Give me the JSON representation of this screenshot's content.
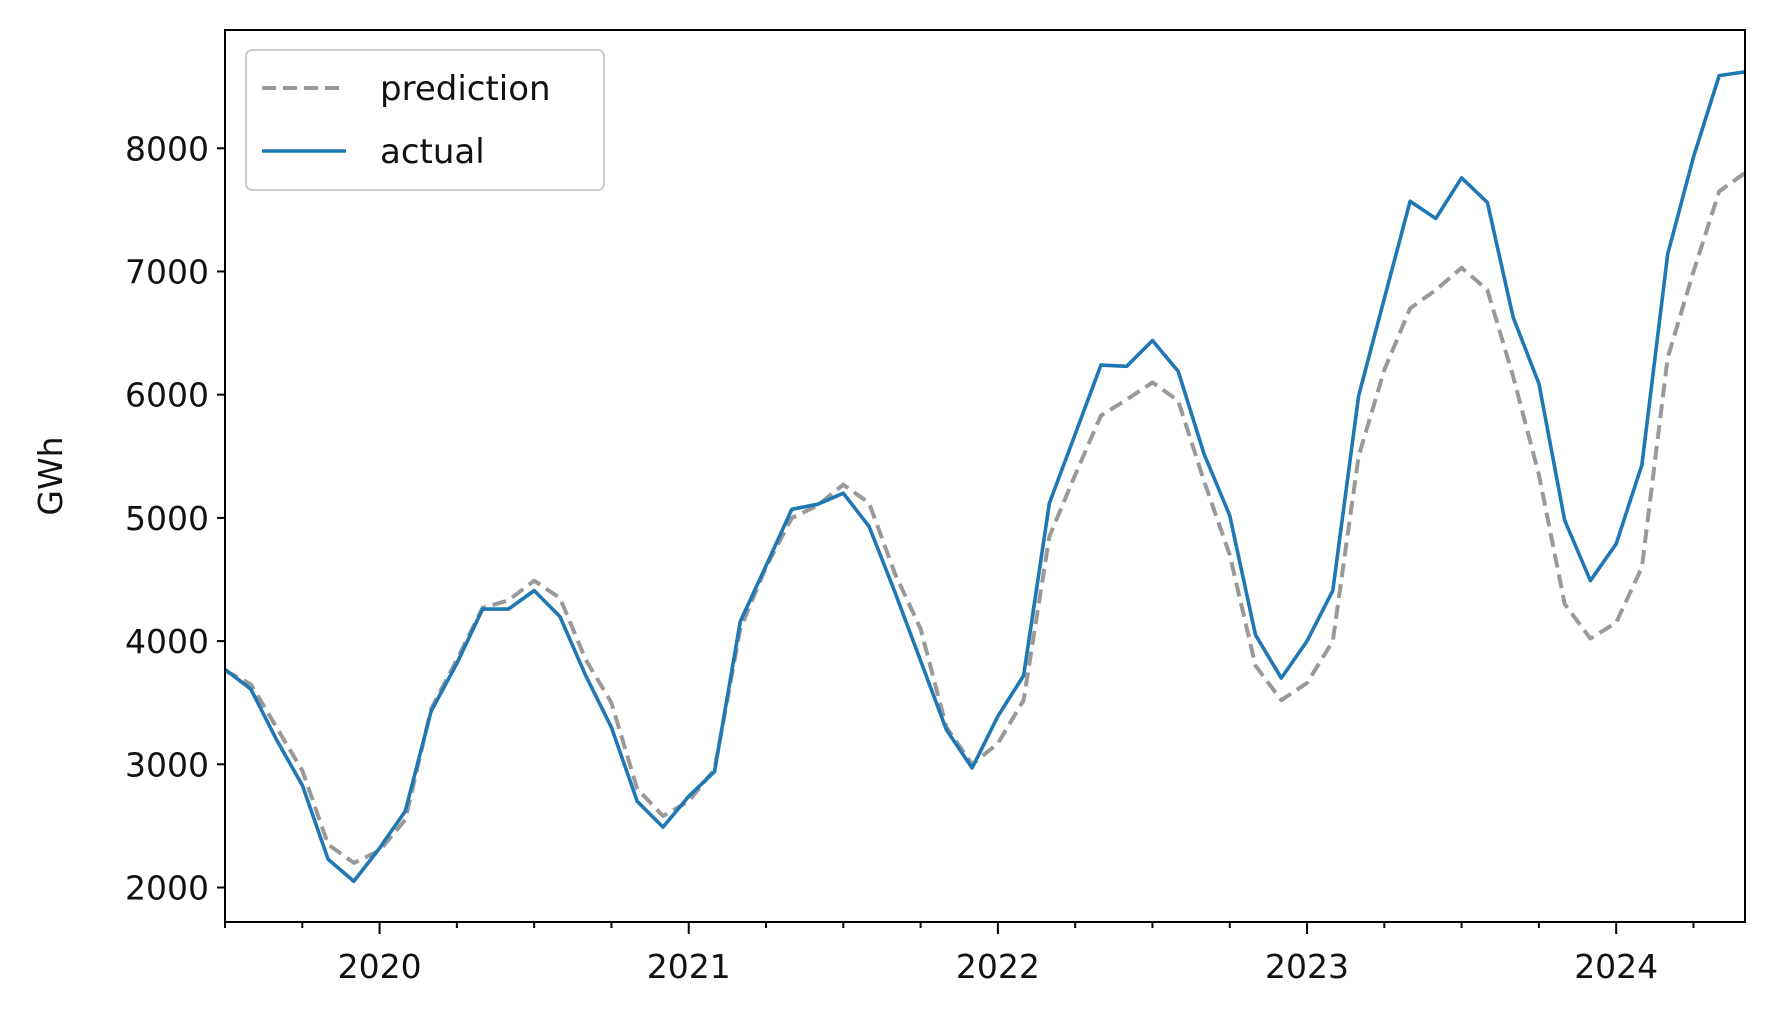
{
  "chart_data": {
    "type": "line",
    "title": "",
    "xlabel": "",
    "ylabel": "GWh",
    "ylim": [
      1720,
      8960
    ],
    "xlim": [
      "2019-07",
      "2024-06"
    ],
    "grid": false,
    "legend_position": "top-left",
    "y_ticks": [
      "2000",
      "3000",
      "4000",
      "5000",
      "6000",
      "7000",
      "8000"
    ],
    "x_ticks": [
      "2020",
      "2021",
      "2022",
      "2023",
      "2024"
    ],
    "x": [
      "2019-07",
      "2019-08",
      "2019-09",
      "2019-10",
      "2019-11",
      "2019-12",
      "2020-01",
      "2020-02",
      "2020-03",
      "2020-04",
      "2020-05",
      "2020-06",
      "2020-07",
      "2020-08",
      "2020-09",
      "2020-10",
      "2020-11",
      "2020-12",
      "2021-01",
      "2021-02",
      "2021-03",
      "2021-04",
      "2021-05",
      "2021-06",
      "2021-07",
      "2021-08",
      "2021-09",
      "2021-10",
      "2021-11",
      "2021-12",
      "2022-01",
      "2022-02",
      "2022-03",
      "2022-04",
      "2022-05",
      "2022-06",
      "2022-07",
      "2022-08",
      "2022-09",
      "2022-10",
      "2022-11",
      "2022-12",
      "2023-01",
      "2023-02",
      "2023-03",
      "2023-04",
      "2023-05",
      "2023-06",
      "2023-07",
      "2023-08",
      "2023-09",
      "2023-10",
      "2023-11",
      "2023-12",
      "2024-01",
      "2024-02",
      "2024-03",
      "2024-04",
      "2024-05",
      "2024-06"
    ],
    "series": [
      {
        "name": "prediction",
        "color": "#999999",
        "style": "dashed",
        "values": [
          3760,
          3650,
          3300,
          2950,
          2350,
          2200,
          2300,
          2550,
          3450,
          3850,
          4270,
          4330,
          4490,
          4350,
          3850,
          3500,
          2800,
          2580,
          2700,
          2960,
          4100,
          4600,
          5000,
          5100,
          5270,
          5120,
          4550,
          4100,
          3300,
          3000,
          3170,
          3520,
          4850,
          5350,
          5830,
          5960,
          6100,
          5950,
          5300,
          4700,
          3800,
          3520,
          3660,
          4000,
          5500,
          6200,
          6700,
          6850,
          7030,
          6850,
          6150,
          5350,
          4300,
          4020,
          4150,
          4600,
          6300,
          7000,
          7650,
          7800
        ]
      },
      {
        "name": "actual",
        "color": "#1f77b4",
        "style": "solid",
        "values": [
          3770,
          3610,
          3200,
          2830,
          2230,
          2050,
          2320,
          2620,
          3430,
          3820,
          4260,
          4260,
          4410,
          4200,
          3720,
          3300,
          2700,
          2490,
          2740,
          2940,
          4160,
          4610,
          5070,
          5110,
          5200,
          4930,
          4400,
          3840,
          3280,
          2970,
          3390,
          3720,
          5120,
          5680,
          6240,
          6230,
          6440,
          6190,
          5520,
          5020,
          4050,
          3700,
          4000,
          4410,
          5990,
          6780,
          7570,
          7430,
          7760,
          7560,
          6630,
          6090,
          4980,
          4490,
          4790,
          5430,
          7140,
          7930,
          8590,
          8620
        ]
      }
    ]
  }
}
